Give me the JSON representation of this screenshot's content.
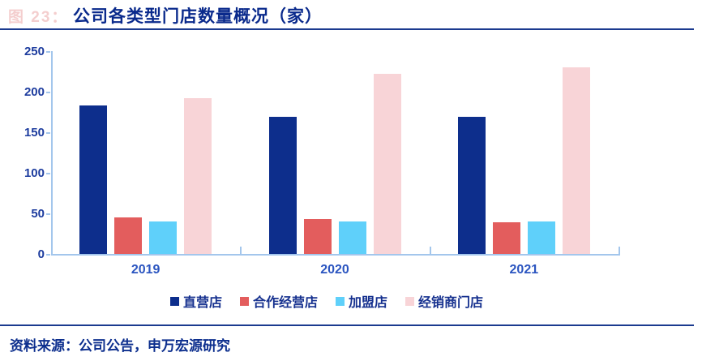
{
  "header": {
    "figure_label": "图 23：",
    "title": "公司各类型门店数量概况（家）",
    "title_color": "#0a2a8c",
    "rule_color": "#1b3a8f"
  },
  "chart_data": {
    "type": "bar",
    "title": "公司各类型门店数量概况（家）",
    "categories": [
      "2019",
      "2020",
      "2021"
    ],
    "series": [
      {
        "name": "直营店",
        "color": "#0d2e8c",
        "values": [
          183,
          169,
          169
        ]
      },
      {
        "name": "合作经营店",
        "color": "#e35d5d",
        "values": [
          45,
          43,
          39
        ]
      },
      {
        "name": "加盟店",
        "color": "#5fd0fa",
        "values": [
          40,
          40,
          40
        ]
      },
      {
        "name": "经销商门店",
        "color": "#f8d4d7",
        "values": [
          192,
          222,
          230
        ]
      }
    ],
    "xlabel": "",
    "ylabel": "",
    "ylim": [
      0,
      250
    ],
    "ytick_step": 50,
    "grid": false,
    "legend_position": "bottom",
    "axis_color": "#a3c6ec",
    "tick_label_color": "#1d3c9e"
  },
  "footer": {
    "source": "资料来源：公司公告，申万宏源研究"
  }
}
